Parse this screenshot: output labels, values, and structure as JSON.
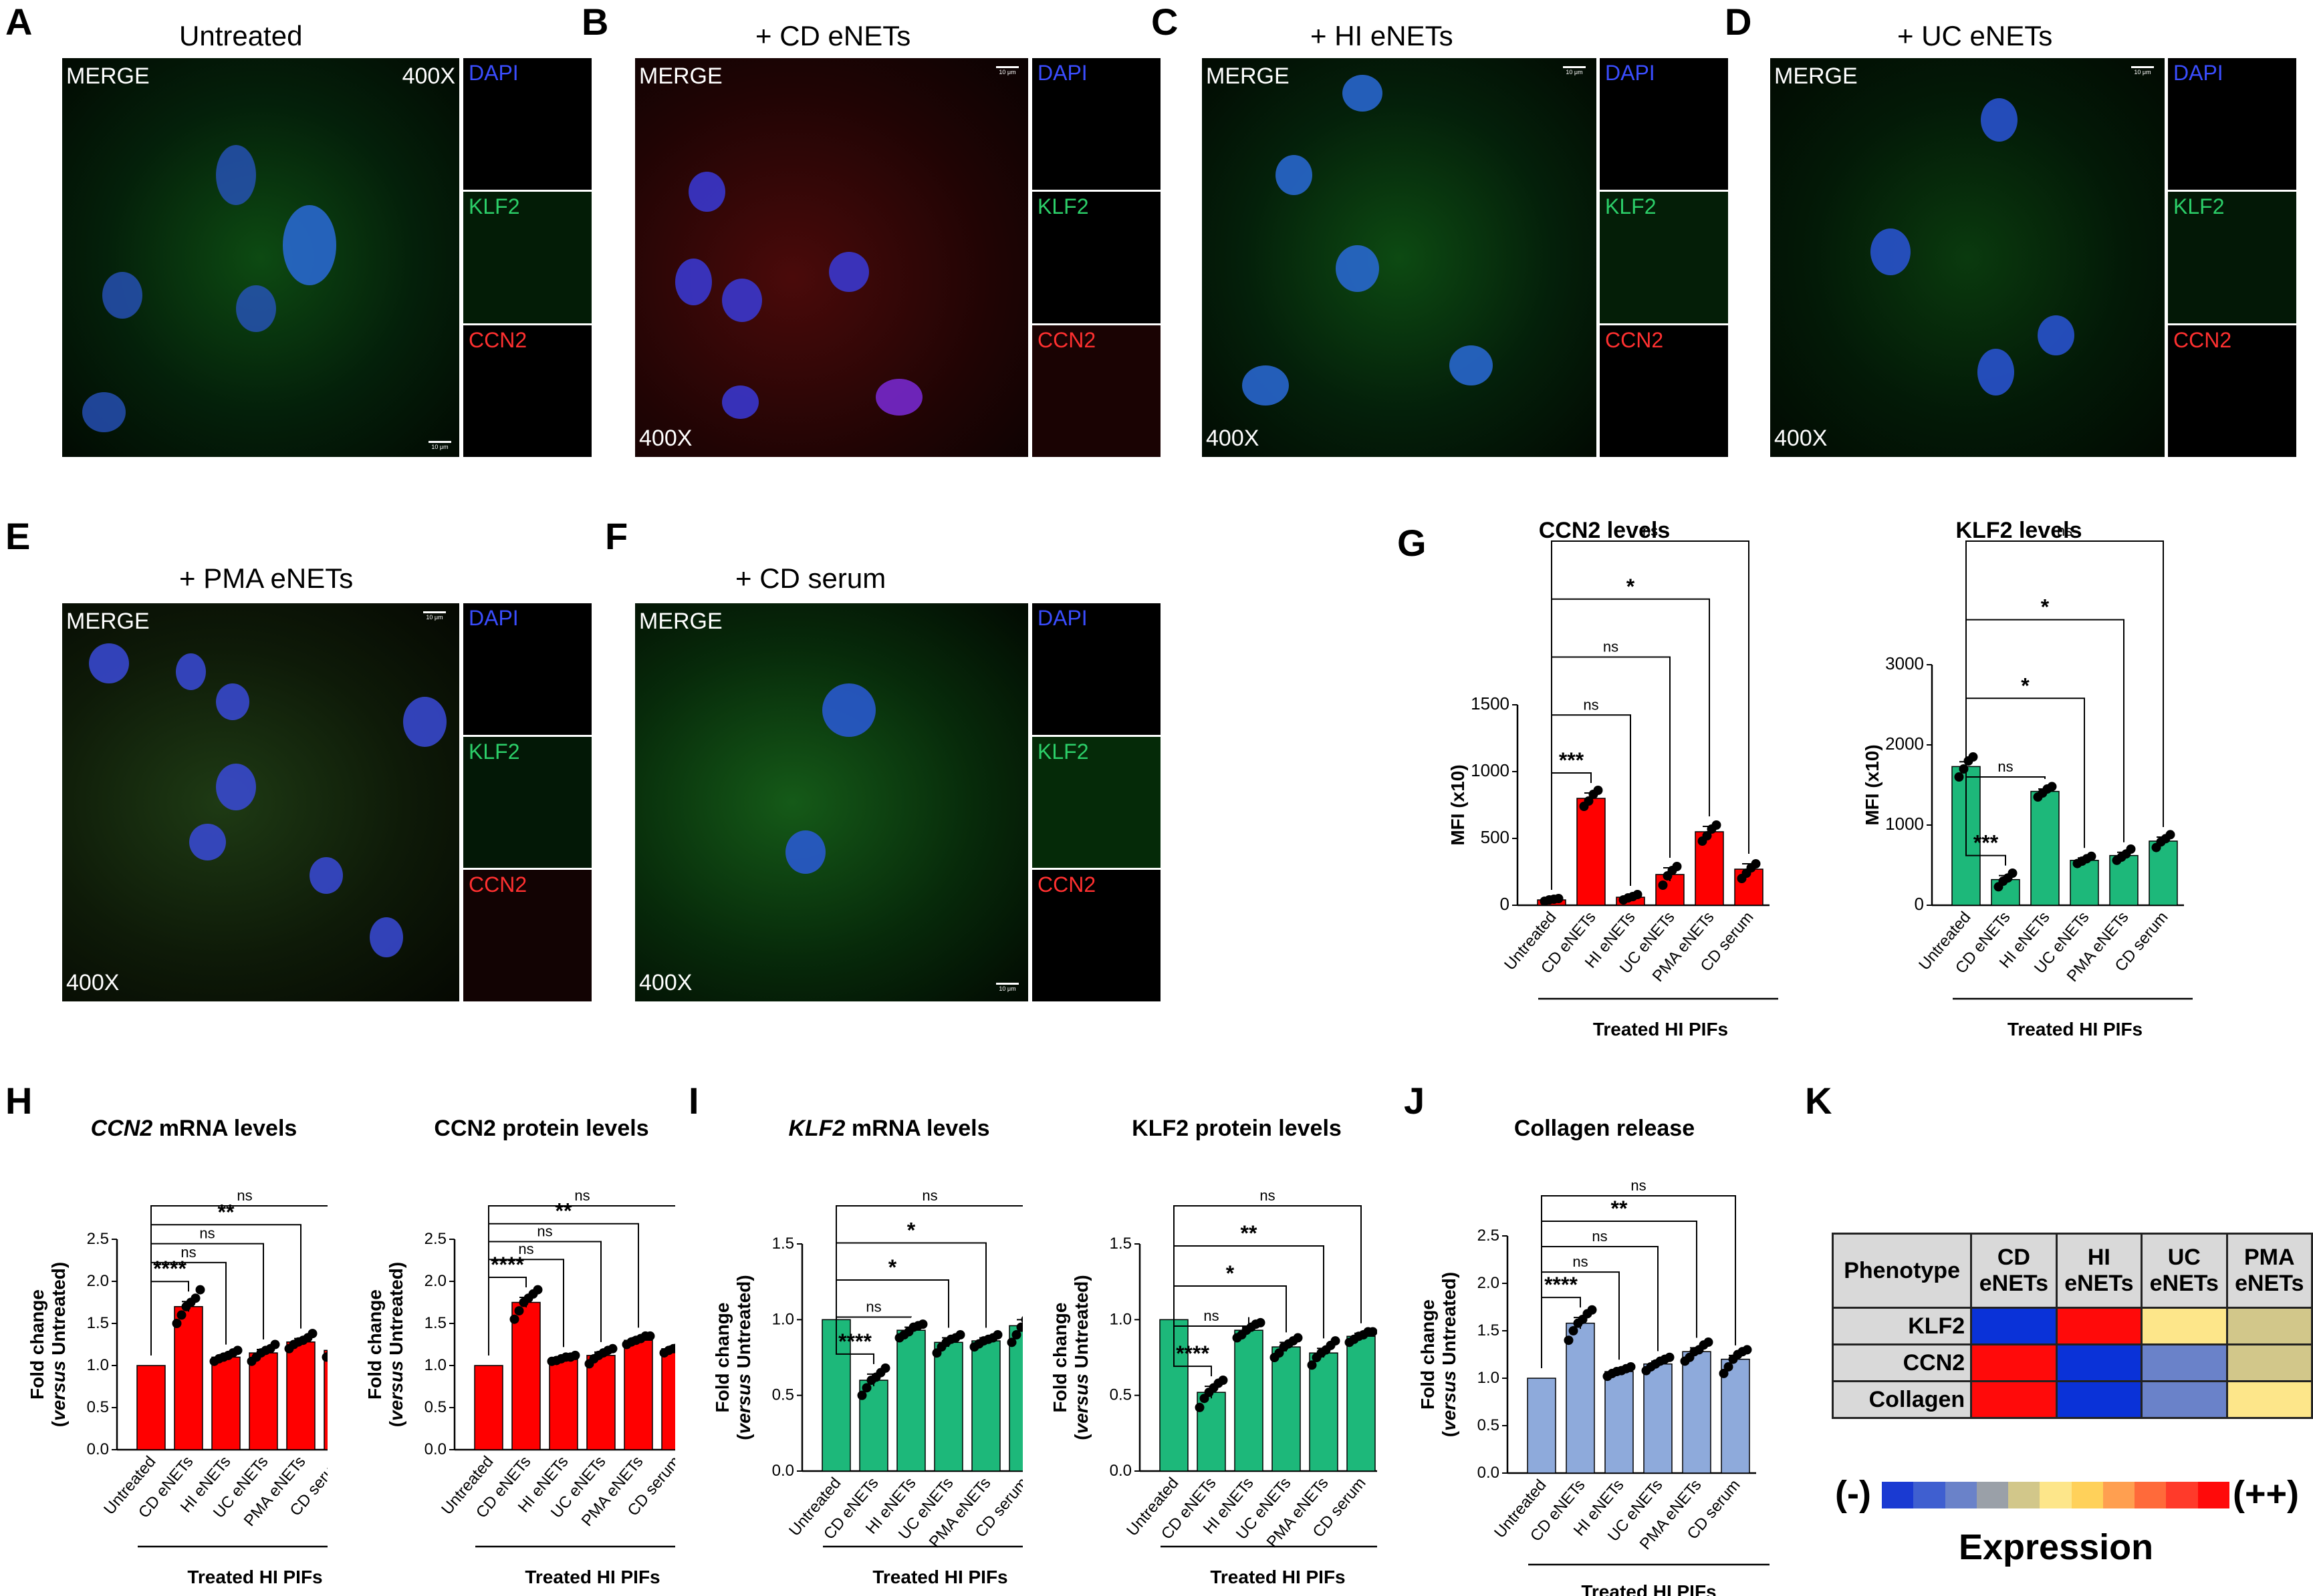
{
  "panels": {
    "A": {
      "letter": "A",
      "title": "Untreated"
    },
    "B": {
      "letter": "B",
      "title": "+ CD eNETs"
    },
    "C": {
      "letter": "C",
      "title": "+ HI eNETs"
    },
    "D": {
      "letter": "D",
      "title": "+ UC eNETs"
    },
    "E": {
      "letter": "E",
      "title": "+ PMA eNETs"
    },
    "F": {
      "letter": "F",
      "title": "+ CD serum"
    },
    "G": {
      "letter": "G"
    },
    "H": {
      "letter": "H"
    },
    "I": {
      "letter": "I"
    },
    "J": {
      "letter": "J"
    },
    "K": {
      "letter": "K"
    }
  },
  "micro_labels": {
    "merge": "MERGE",
    "magnification": "400X",
    "scalebar": "10 μm",
    "dapi": "DAPI",
    "klf2": "KLF2",
    "ccn2": "CCN2"
  },
  "colors": {
    "red_bar": "#ff0000",
    "green_bar": "#1db87a",
    "blue_bar": "#8eaadb",
    "dapi": "#3a4dff",
    "klf2": "#2ccf69",
    "ccn2": "#ff3030"
  },
  "common": {
    "categories": [
      "Untreated",
      "CD eNETs",
      "HI eNETs",
      "UC eNETs",
      "PMA eNETs",
      "CD serum"
    ],
    "group_label": "Treated HI PIFs",
    "fold_ylabel_line1": "Fold change",
    "fold_ylabel_line2_pre": "(",
    "fold_ylabel_line2_italic": "versus",
    "fold_ylabel_line2_post": " Untreated)"
  },
  "chart_data": [
    {
      "id": "G1",
      "type": "bar",
      "title": "CCN2 levels",
      "title_italic": "",
      "title_rest": "",
      "ylabel": "MFI (x10)",
      "ylim": [
        0,
        1500
      ],
      "yticks": [
        0,
        500,
        1000,
        1500
      ],
      "categories": [
        "Untreated",
        "CD eNETs",
        "HI eNETs",
        "UC eNETs",
        "PMA eNETs",
        "CD serum"
      ],
      "values": [
        40,
        800,
        60,
        230,
        550,
        270
      ],
      "errors": [
        8,
        40,
        10,
        50,
        40,
        40
      ],
      "color": "#ff0000",
      "points": [
        [
          30,
          40,
          45,
          50
        ],
        [
          740,
          780,
          830,
          860
        ],
        [
          40,
          55,
          65,
          80
        ],
        [
          150,
          220,
          260,
          290
        ],
        [
          480,
          520,
          570,
          600
        ],
        [
          200,
          240,
          280,
          310
        ]
      ],
      "significance": [
        {
          "to": 1,
          "label": "***"
        },
        {
          "to": 2,
          "label": "ns"
        },
        {
          "to": 3,
          "label": "ns"
        },
        {
          "to": 4,
          "label": "*"
        },
        {
          "to": 5,
          "label": "ns"
        }
      ]
    },
    {
      "id": "G2",
      "type": "bar",
      "title": "KLF2 levels",
      "title_italic": "",
      "title_rest": "",
      "ylabel": "MFI (x10)",
      "ylim": [
        0,
        3000
      ],
      "yticks": [
        0,
        1000,
        2000,
        3000
      ],
      "categories": [
        "Untreated",
        "CD eNETs",
        "HI eNETs",
        "UC eNETs",
        "PMA eNETs",
        "CD serum"
      ],
      "values": [
        1730,
        320,
        1420,
        560,
        620,
        800
      ],
      "errors": [
        60,
        50,
        30,
        30,
        40,
        50
      ],
      "color": "#1db87a",
      "points": [
        [
          1600,
          1700,
          1800,
          1850
        ],
        [
          230,
          300,
          340,
          400
        ],
        [
          1350,
          1400,
          1450,
          1480
        ],
        [
          520,
          550,
          580,
          610
        ],
        [
          560,
          600,
          640,
          700
        ],
        [
          720,
          790,
          830,
          880
        ]
      ],
      "significance": [
        {
          "to": 1,
          "label": "***"
        },
        {
          "to": 2,
          "label": "ns"
        },
        {
          "to": 3,
          "label": "*"
        },
        {
          "to": 4,
          "label": "*"
        },
        {
          "to": 5,
          "label": "ns"
        }
      ]
    },
    {
      "id": "H1",
      "type": "bar",
      "title": "",
      "title_italic": "CCN2",
      "title_rest": " mRNA levels",
      "ylabel": "",
      "ylim": [
        0,
        2.5
      ],
      "yticks": [
        0,
        0.5,
        1.0,
        1.5,
        2.0,
        2.5
      ],
      "categories": [
        "Untreated",
        "CD eNETs",
        "HI eNETs",
        "UC eNETs",
        "PMA eNETs",
        "CD serum"
      ],
      "values": [
        1.0,
        1.7,
        1.1,
        1.15,
        1.28,
        1.18
      ],
      "errors": [
        0,
        0.06,
        0.03,
        0.04,
        0.04,
        0.03
      ],
      "color": "#ff0000",
      "points": [
        [],
        [
          1.5,
          1.6,
          1.7,
          1.75,
          1.8,
          1.9
        ],
        [
          1.05,
          1.08,
          1.1,
          1.12,
          1.15,
          1.18
        ],
        [
          1.05,
          1.1,
          1.15,
          1.18,
          1.2,
          1.25
        ],
        [
          1.2,
          1.25,
          1.28,
          1.3,
          1.33,
          1.38
        ],
        [
          1.1,
          1.15,
          1.18,
          1.2,
          1.22,
          1.25
        ]
      ],
      "significance": [
        {
          "to": 1,
          "label": "****"
        },
        {
          "to": 2,
          "label": "ns"
        },
        {
          "to": 3,
          "label": "ns"
        },
        {
          "to": 4,
          "label": "**"
        },
        {
          "to": 5,
          "label": "ns"
        }
      ]
    },
    {
      "id": "H2",
      "type": "bar",
      "title": "CCN2 protein levels",
      "title_italic": "",
      "title_rest": "",
      "ylabel": "",
      "ylim": [
        0,
        2.5
      ],
      "yticks": [
        0,
        0.5,
        1.0,
        1.5,
        2.0,
        2.5
      ],
      "categories": [
        "Untreated",
        "CD eNETs",
        "HI eNETs",
        "UC eNETs",
        "PMA eNETs",
        "CD serum"
      ],
      "values": [
        1.0,
        1.75,
        1.08,
        1.12,
        1.3,
        1.2
      ],
      "errors": [
        0,
        0.06,
        0.02,
        0.04,
        0.03,
        0.03
      ],
      "color": "#ff0000",
      "points": [
        [],
        [
          1.55,
          1.65,
          1.75,
          1.8,
          1.85,
          1.9
        ],
        [
          1.05,
          1.06,
          1.08,
          1.1,
          1.1,
          1.12
        ],
        [
          1.02,
          1.08,
          1.12,
          1.15,
          1.18,
          1.2
        ],
        [
          1.25,
          1.28,
          1.3,
          1.32,
          1.35,
          1.35
        ],
        [
          1.15,
          1.18,
          1.2,
          1.22,
          1.22,
          1.25
        ]
      ],
      "significance": [
        {
          "to": 1,
          "label": "****"
        },
        {
          "to": 2,
          "label": "ns"
        },
        {
          "to": 3,
          "label": "ns"
        },
        {
          "to": 4,
          "label": "**"
        },
        {
          "to": 5,
          "label": "ns"
        }
      ]
    },
    {
      "id": "I1",
      "type": "bar",
      "title": "",
      "title_italic": "KLF2",
      "title_rest": " mRNA levels",
      "ylabel": "",
      "ylim": [
        0,
        1.5
      ],
      "yticks": [
        0,
        0.5,
        1.0,
        1.5
      ],
      "categories": [
        "Untreated",
        "CD eNETs",
        "HI eNETs",
        "UC eNETs",
        "PMA eNETs",
        "CD serum"
      ],
      "values": [
        1.0,
        0.6,
        0.93,
        0.85,
        0.86,
        0.96
      ],
      "errors": [
        0,
        0.04,
        0.02,
        0.03,
        0.02,
        0.04
      ],
      "color": "#1db87a",
      "points": [
        [],
        [
          0.5,
          0.55,
          0.6,
          0.62,
          0.65,
          0.68
        ],
        [
          0.88,
          0.9,
          0.92,
          0.95,
          0.96,
          0.97
        ],
        [
          0.78,
          0.82,
          0.85,
          0.87,
          0.88,
          0.9
        ],
        [
          0.82,
          0.84,
          0.86,
          0.87,
          0.88,
          0.9
        ],
        [
          0.85,
          0.9,
          0.95,
          1.0,
          1.02,
          1.05
        ]
      ],
      "significance": [
        {
          "to": 1,
          "label": "****"
        },
        {
          "to": 2,
          "label": "ns"
        },
        {
          "to": 3,
          "label": "*"
        },
        {
          "to": 4,
          "label": "*"
        },
        {
          "to": 5,
          "label": "ns"
        }
      ]
    },
    {
      "id": "I2",
      "type": "bar",
      "title": "KLF2 protein levels",
      "title_italic": "",
      "title_rest": "",
      "ylabel": "",
      "ylim": [
        0,
        1.5
      ],
      "yticks": [
        0,
        0.5,
        1.0,
        1.5
      ],
      "categories": [
        "Untreated",
        "CD eNETs",
        "HI eNETs",
        "UC eNETs",
        "PMA eNETs",
        "CD serum"
      ],
      "values": [
        1.0,
        0.52,
        0.93,
        0.82,
        0.78,
        0.89
      ],
      "errors": [
        0,
        0.04,
        0.02,
        0.03,
        0.03,
        0.02
      ],
      "color": "#1db87a",
      "points": [
        [],
        [
          0.42,
          0.48,
          0.52,
          0.55,
          0.58,
          0.6
        ],
        [
          0.88,
          0.9,
          0.93,
          0.95,
          0.97,
          0.98
        ],
        [
          0.75,
          0.78,
          0.82,
          0.84,
          0.86,
          0.88
        ],
        [
          0.7,
          0.75,
          0.78,
          0.8,
          0.83,
          0.86
        ],
        [
          0.85,
          0.87,
          0.89,
          0.9,
          0.92,
          0.92
        ]
      ],
      "significance": [
        {
          "to": 1,
          "label": "****"
        },
        {
          "to": 2,
          "label": "ns"
        },
        {
          "to": 3,
          "label": "*"
        },
        {
          "to": 4,
          "label": "**"
        },
        {
          "to": 5,
          "label": "ns"
        }
      ]
    },
    {
      "id": "J",
      "type": "bar",
      "title": "Collagen release",
      "title_italic": "",
      "title_rest": "",
      "ylabel": "",
      "ylim": [
        0,
        2.5
      ],
      "yticks": [
        0,
        0.5,
        1.0,
        1.5,
        2.0,
        2.5
      ],
      "categories": [
        "Untreated",
        "CD eNETs",
        "HI eNETs",
        "UC eNETs",
        "PMA eNETs",
        "CD serum"
      ],
      "values": [
        1.0,
        1.58,
        1.07,
        1.15,
        1.28,
        1.2
      ],
      "errors": [
        0,
        0.06,
        0.02,
        0.03,
        0.04,
        0.04
      ],
      "color": "#8eaadb",
      "points": [
        [],
        [
          1.4,
          1.5,
          1.58,
          1.62,
          1.68,
          1.72
        ],
        [
          1.02,
          1.05,
          1.07,
          1.08,
          1.1,
          1.12
        ],
        [
          1.08,
          1.12,
          1.15,
          1.18,
          1.2,
          1.22
        ],
        [
          1.18,
          1.22,
          1.28,
          1.3,
          1.35,
          1.38
        ],
        [
          1.05,
          1.12,
          1.2,
          1.25,
          1.28,
          1.3
        ]
      ],
      "significance": [
        {
          "to": 1,
          "label": "****"
        },
        {
          "to": 2,
          "label": "ns"
        },
        {
          "to": 3,
          "label": "ns"
        },
        {
          "to": 4,
          "label": "**"
        },
        {
          "to": 5,
          "label": "ns"
        }
      ]
    }
  ],
  "heatmap": {
    "header": "Phenotype",
    "columns": [
      [
        "CD",
        "eNETs"
      ],
      [
        "HI",
        "eNETs"
      ],
      [
        "UC",
        "eNETs"
      ],
      [
        "PMA",
        "eNETs"
      ]
    ],
    "rows": [
      {
        "label": "KLF2",
        "colors": [
          "#0a32d8",
          "#ff0a0a",
          "#fde68a",
          "#d2c78a"
        ]
      },
      {
        "label": "CCN2",
        "colors": [
          "#ff0a0a",
          "#0a32d8",
          "#6a82c9",
          "#d2c78a"
        ]
      },
      {
        "label": "Collagen",
        "colors": [
          "#ff0a0a",
          "#0a32d8",
          "#6a82c9",
          "#fde68a"
        ]
      }
    ],
    "scale_colors": [
      "#1a3ad2",
      "#3f5fd0",
      "#6a82c9",
      "#9aa0a8",
      "#d2c78a",
      "#fde68a",
      "#ffd15a",
      "#ff9f50",
      "#ff6a3a",
      "#ff3a2a",
      "#ff0a0a"
    ],
    "scale_min": "(-)",
    "scale_max": "(++)",
    "scale_label": "Expression"
  }
}
